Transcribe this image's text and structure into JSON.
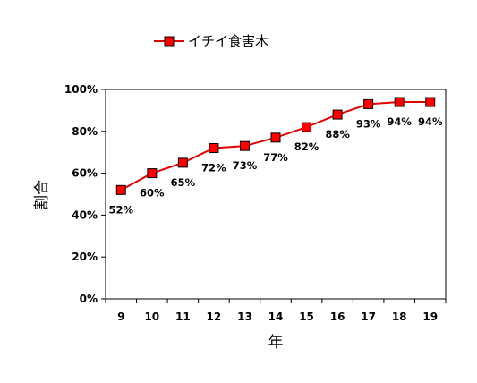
{
  "chart_data": {
    "type": "line",
    "xlabel": "年",
    "ylabel": "割合",
    "categories": [
      "9",
      "10",
      "11",
      "12",
      "13",
      "14",
      "15",
      "16",
      "17",
      "18",
      "19"
    ],
    "yticks": [
      "0%",
      "20%",
      "40%",
      "60%",
      "80%",
      "100%"
    ],
    "ylim": [
      0,
      100
    ],
    "grid": false,
    "legend_position": "top-left",
    "series": [
      {
        "name": "イチイ食害木",
        "color": "#e00000",
        "marker_color": "#ff0000",
        "marker": "square",
        "values": [
          52,
          60,
          65,
          72,
          73,
          77,
          82,
          88,
          93,
          94,
          94
        ],
        "labels": [
          "52%",
          "60%",
          "65%",
          "72%",
          "73%",
          "77%",
          "82%",
          "88%",
          "93%",
          "94%",
          "94%"
        ]
      }
    ]
  }
}
